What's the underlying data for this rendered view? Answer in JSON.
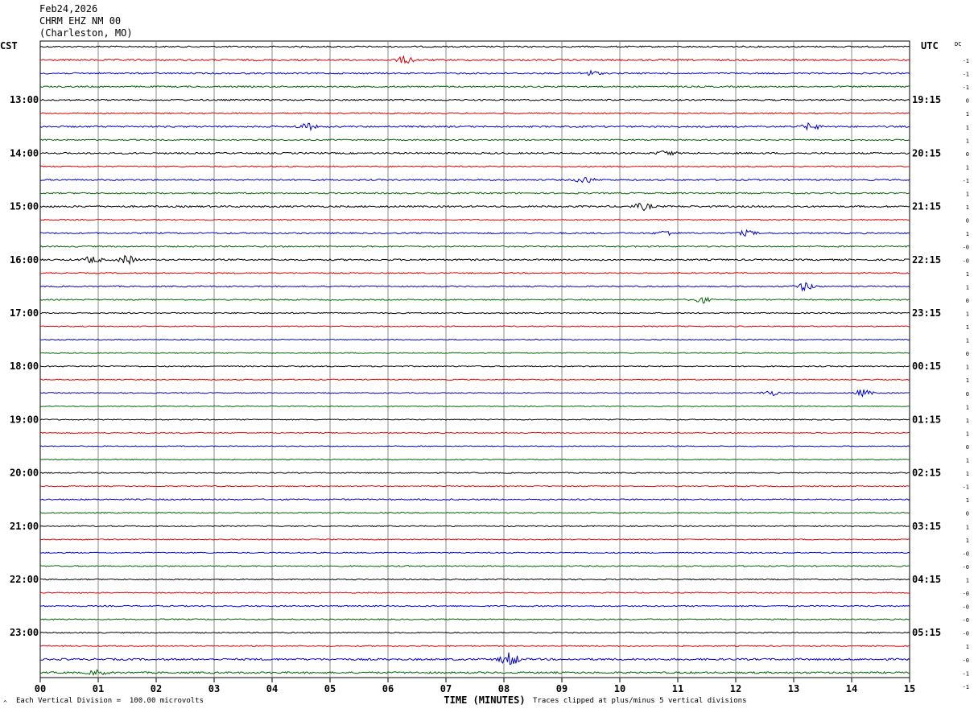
{
  "header": {
    "date": "Feb24,2026",
    "station": "CHRM EHZ NM 00",
    "location": "(Charleston, MO)"
  },
  "footer": {
    "scale_note": "Each Vertical Division =  100.00 microvolts",
    "clip_note": "Traces clipped at plus/minus 5 vertical divisions"
  },
  "chart_data": {
    "type": "line",
    "title": "",
    "xlabel": "TIME (MINUTES)",
    "xlim": [
      0,
      15
    ],
    "x_ticks": [
      "00",
      "01",
      "02",
      "03",
      "04",
      "05",
      "06",
      "07",
      "08",
      "09",
      "10",
      "11",
      "12",
      "13",
      "14",
      "15"
    ],
    "left_axis_label": "CST",
    "right_axis_label": "UTC",
    "dc_column_label": "DC",
    "trace_colors": [
      "#000000",
      "#e00000",
      "#0000cc",
      "#006400"
    ],
    "hour_labels": [
      {
        "trace": 4,
        "cst": "13:00",
        "utc": "19:15"
      },
      {
        "trace": 8,
        "cst": "14:00",
        "utc": "20:15"
      },
      {
        "trace": 12,
        "cst": "15:00",
        "utc": "21:15"
      },
      {
        "trace": 16,
        "cst": "16:00",
        "utc": "22:15"
      },
      {
        "trace": 20,
        "cst": "17:00",
        "utc": "23:15"
      },
      {
        "trace": 24,
        "cst": "18:00",
        "utc": "00:15"
      },
      {
        "trace": 28,
        "cst": "19:00",
        "utc": "01:15"
      },
      {
        "trace": 32,
        "cst": "20:00",
        "utc": "02:15"
      },
      {
        "trace": 36,
        "cst": "21:00",
        "utc": "03:15"
      },
      {
        "trace": 40,
        "cst": "22:00",
        "utc": "04:15"
      },
      {
        "trace": 44,
        "cst": "23:00",
        "utc": "05:15"
      }
    ],
    "dc_offsets": [
      "-1",
      "-1",
      "-1",
      "0",
      "1",
      "1",
      "1",
      "0",
      "1",
      "-1",
      "1",
      "1",
      "0",
      "1",
      "-0",
      "-0",
      "1",
      "1",
      "0",
      "1",
      "1",
      "1",
      "0",
      "1",
      "1",
      "0",
      "1",
      "1",
      "1",
      "0",
      "1",
      "1",
      "-1",
      "1",
      "0",
      "1",
      "1",
      "-0",
      "-0",
      "1",
      "-0",
      "-0",
      "-0",
      "-0",
      "1",
      "-0",
      "-1",
      "-1"
    ],
    "noise_levels": [
      1.0,
      1.2,
      1.0,
      1.0,
      1.0,
      0.9,
      1.1,
      0.9,
      1.1,
      0.9,
      1.0,
      1.0,
      1.2,
      0.9,
      1.0,
      0.9,
      1.1,
      0.8,
      0.9,
      0.8,
      0.8,
      0.7,
      0.7,
      0.7,
      0.8,
      0.7,
      0.7,
      0.6,
      0.7,
      0.7,
      0.6,
      0.6,
      0.7,
      0.7,
      0.9,
      0.8,
      0.8,
      0.7,
      0.8,
      0.8,
      0.8,
      0.7,
      0.9,
      0.8,
      0.8,
      0.8,
      1.3,
      1.2
    ],
    "bursts": [
      {
        "trace": 1,
        "minute": 6.3,
        "amplitude": 4
      },
      {
        "trace": 2,
        "minute": 9.5,
        "amplitude": 3
      },
      {
        "trace": 6,
        "minute": 4.6,
        "amplitude": 4
      },
      {
        "trace": 6,
        "minute": 13.3,
        "amplitude": 4
      },
      {
        "trace": 8,
        "minute": 10.8,
        "amplitude": 3
      },
      {
        "trace": 10,
        "minute": 9.4,
        "amplitude": 4
      },
      {
        "trace": 12,
        "minute": 10.4,
        "amplitude": 4
      },
      {
        "trace": 14,
        "minute": 10.8,
        "amplitude": 3
      },
      {
        "trace": 14,
        "minute": 12.2,
        "amplitude": 3
      },
      {
        "trace": 16,
        "minute": 0.9,
        "amplitude": 4
      },
      {
        "trace": 16,
        "minute": 1.5,
        "amplitude": 5
      },
      {
        "trace": 18,
        "minute": 13.2,
        "amplitude": 5
      },
      {
        "trace": 19,
        "minute": 11.4,
        "amplitude": 4
      },
      {
        "trace": 26,
        "minute": 12.6,
        "amplitude": 3
      },
      {
        "trace": 26,
        "minute": 14.2,
        "amplitude": 4
      },
      {
        "trace": 46,
        "minute": 8.1,
        "amplitude": 9
      },
      {
        "trace": 47,
        "minute": 1.0,
        "amplitude": 3
      }
    ]
  }
}
